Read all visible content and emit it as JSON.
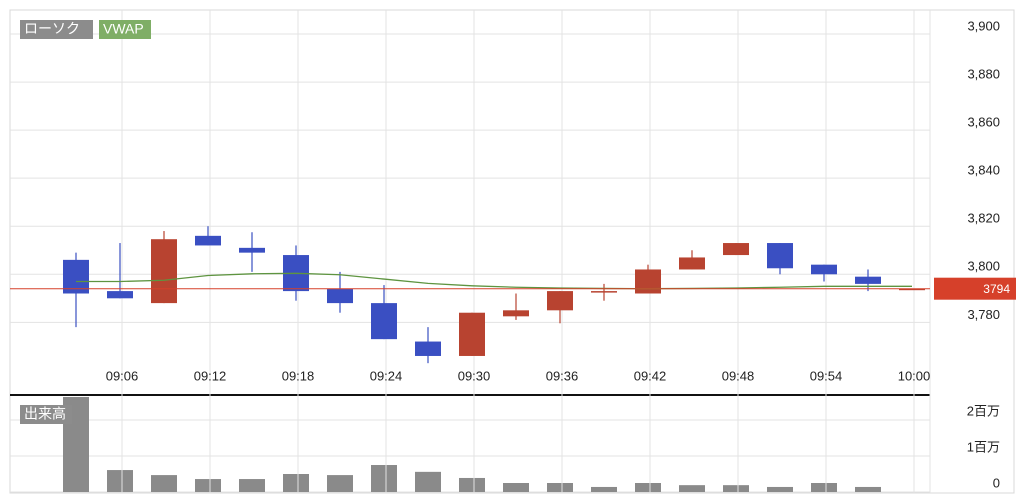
{
  "chart_data": [
    {
      "type": "candlestick",
      "categories": [
        null,
        "09:06",
        null,
        "09:12",
        null,
        "09:18",
        null,
        "09:24",
        null,
        "09:30",
        null,
        "09:36",
        null,
        "09:42",
        null,
        "09:48",
        null,
        "09:54",
        null,
        "10:00"
      ],
      "candles": {
        "name": "ローソク",
        "legend_color": "#8c8c8c",
        "up_color": "#b84330",
        "down_color": "#3a4fc2",
        "open": [
          3806,
          3793,
          3788,
          3816,
          3811,
          3808,
          3794,
          3788,
          3772,
          3766,
          3782.5,
          3785,
          3792.5,
          3792,
          3802,
          3808,
          3813,
          3804,
          3799,
          3794
        ],
        "high": [
          3809,
          3813,
          3818,
          3820,
          3817.5,
          3812,
          3801,
          3795.5,
          3778,
          3784,
          3792,
          3793,
          3796,
          3804,
          3810,
          3813,
          3813,
          3804,
          3802,
          3794
        ],
        "low": [
          3778,
          3790,
          3788,
          3812,
          3801,
          3789,
          3784,
          3773,
          3763,
          3766,
          3781,
          3779.6,
          3789,
          3792,
          3802,
          3808,
          3800,
          3797,
          3793,
          3794
        ],
        "close": [
          3792,
          3790,
          3814.6,
          3812,
          3809,
          3793,
          3788,
          3773,
          3766,
          3784,
          3785,
          3793,
          3793,
          3802,
          3807,
          3813,
          3802.5,
          3800,
          3796,
          3794
        ]
      },
      "vwap": {
        "name": "VWAP",
        "color": "#5e9440",
        "legend_color": "#7fae66",
        "values": [
          3797,
          3797,
          3797.5,
          3799.5,
          3800.2,
          3800.4,
          3799.8,
          3798,
          3796.2,
          3795.2,
          3794.6,
          3794.3,
          3794.1,
          3794,
          3794.1,
          3794.3,
          3794.6,
          3795,
          3795,
          3795
        ]
      },
      "last_price": {
        "value": 3794,
        "color": "#d6402a"
      },
      "ylim": [
        3751,
        3910
      ],
      "yticks": [
        {
          "value": 3780,
          "label": "3,780"
        },
        {
          "value": 3800,
          "label": "3,800"
        },
        {
          "value": 3820,
          "label": "3,820"
        },
        {
          "value": 3840,
          "label": "3,840"
        },
        {
          "value": 3860,
          "label": "3,860"
        },
        {
          "value": 3880,
          "label": "3,880"
        },
        {
          "value": 3900,
          "label": "3,900"
        }
      ],
      "grid": true
    },
    {
      "type": "bar",
      "name": "出来高",
      "color": "#8a8a8a",
      "values": [
        2640000,
        610000,
        470000,
        360000,
        360000,
        500000,
        470000,
        750000,
        560000,
        390000,
        250000,
        250000,
        140000,
        250000,
        190000,
        190000,
        140000,
        250000,
        140000,
        0
      ],
      "ylim": [
        0,
        2640000
      ],
      "yticks": [
        0,
        {
          "value": 1000000,
          "label": "1百万"
        },
        {
          "value": 2000000,
          "label": "2百万"
        }
      ],
      "grid": true
    }
  ]
}
